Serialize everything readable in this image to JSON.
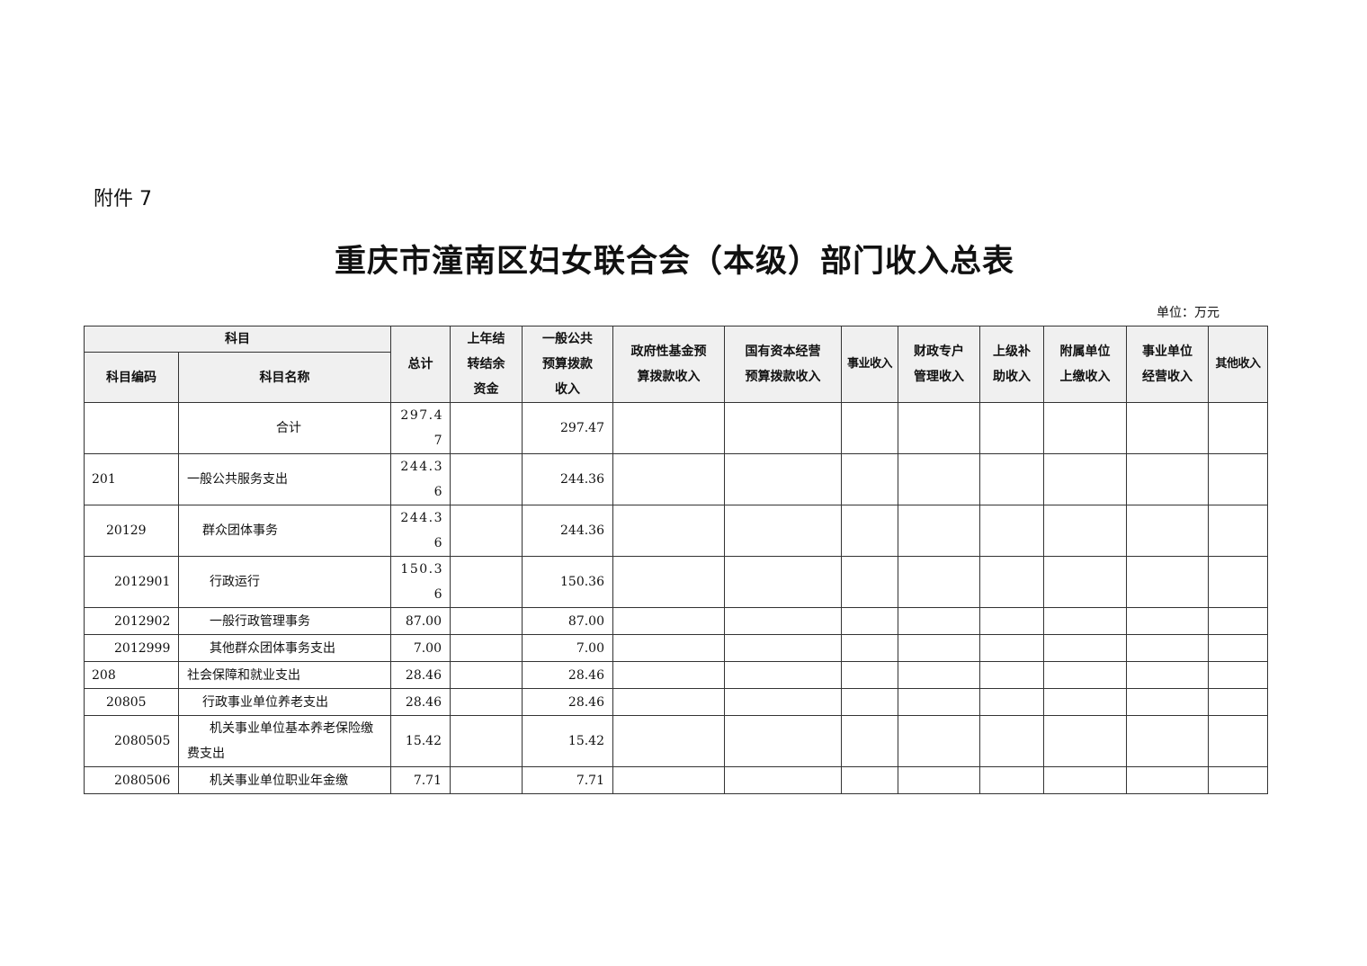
{
  "attachment": "附件 7",
  "title": "重庆市潼南区妇女联合会（本级）部门收入总表",
  "unit": "单位：万元",
  "headers": {
    "subject": "科目",
    "code": "科目编码",
    "name": "科目名称",
    "cols": [
      "总计",
      "上年结转结余资金",
      "一般公共预算拨款收入",
      "政府性基金预算拨款收入",
      "国有资本经营预算拨款收入",
      "事业收入",
      "财政专户管理收入",
      "上级补助收入",
      "附属单位上缴收入",
      "事业单位经营收入",
      "其他收入"
    ]
  },
  "rows": [
    {
      "code": "",
      "name": "合计",
      "level": 0,
      "total": "297.47",
      "general": "297.47"
    },
    {
      "code": "201",
      "name": "一般公共服务支出",
      "level": 1,
      "total": "244.36",
      "general": "244.36"
    },
    {
      "code": "20129",
      "name": "群众团体事务",
      "level": 2,
      "total": "244.36",
      "general": "244.36"
    },
    {
      "code": "2012901",
      "name": "行政运行",
      "level": 3,
      "total": "150.36",
      "general": "150.36"
    },
    {
      "code": "2012902",
      "name": "一般行政管理事务",
      "level": 3,
      "total": "87.00",
      "general": "87.00"
    },
    {
      "code": "2012999",
      "name": "其他群众团体事务支出",
      "level": 3,
      "total": "7.00",
      "general": "7.00"
    },
    {
      "code": "208",
      "name": "社会保障和就业支出",
      "level": 1,
      "total": "28.46",
      "general": "28.46"
    },
    {
      "code": "20805",
      "name": "行政事业单位养老支出",
      "level": 2,
      "total": "28.46",
      "general": "28.46"
    },
    {
      "code": "2080505",
      "name": "机关事业单位基本养老保险缴费支出",
      "level": 3,
      "total": "15.42",
      "general": "15.42"
    },
    {
      "code": "2080506",
      "name": "机关事业单位职业年金缴",
      "level": 3,
      "total": "7.71",
      "general": "7.71"
    }
  ]
}
